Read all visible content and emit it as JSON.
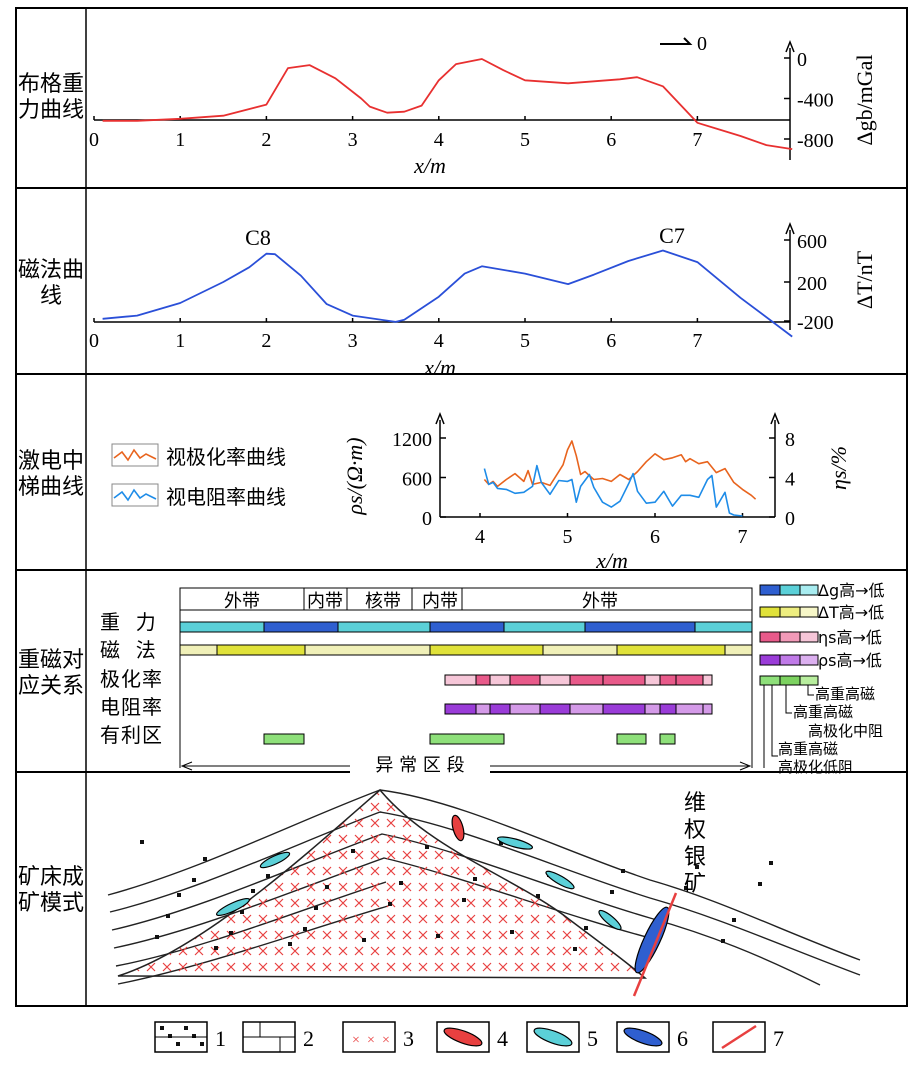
{
  "panels": {
    "gravity": {
      "label": "布格重力曲线",
      "xlabel": "x/m",
      "ylabel": "Δgb/mGal",
      "yticks": [
        "0",
        "-400",
        "-800"
      ],
      "arrow_label": "0"
    },
    "magnetic": {
      "label": "磁法曲线",
      "xlabel": "x/m",
      "ylabel": "ΔT/nT",
      "yticks": [
        "600",
        "200",
        "-200"
      ],
      "peak_labels": [
        "C8",
        "C7"
      ]
    },
    "ip": {
      "label": "激电中梯曲线",
      "legend": [
        "视极化率曲线",
        "视电阻率曲线"
      ],
      "ylabel_left": "ρs/(Ω·m)",
      "ylabel_right": "ηs/%",
      "xlabel": "x/m",
      "left_ticks": [
        "1200",
        "600",
        "0"
      ],
      "right_ticks": [
        "8",
        "4",
        "0"
      ]
    },
    "relation": {
      "label": "重磁对应关系",
      "zones": [
        "外带",
        "内带",
        "核带",
        "内带",
        "外带"
      ],
      "rows": [
        "重  力",
        "磁  法",
        "极化率",
        "电阻率",
        "有利区"
      ],
      "bottom": "异 常 区 段",
      "legend": [
        "Δg高→低",
        "ΔT高→低",
        "ηs高→低",
        "ρs高→低"
      ],
      "notes": [
        "高重高磁",
        "高重高磁",
        "高极化中阻",
        "高重高磁",
        "高极化低阻"
      ]
    },
    "model": {
      "label": "矿床成矿模式",
      "vein_label": "维权银矿"
    }
  },
  "legend_items": [
    "1",
    "2",
    "3",
    "4",
    "5",
    "6",
    "7"
  ],
  "colors": {
    "gravity": "#e83030",
    "magnetic": "#2a4fd8",
    "polar": "#e8641e",
    "resist": "#1e8ce8",
    "cyan": "#5bd0d8",
    "blue": "#2f5fd0",
    "yellow": "#e0e23a",
    "pink": "#e85a8a",
    "purple": "#9a3cd8",
    "green": "#8ee07a",
    "granite": "#e84040"
  },
  "chart_data": [
    {
      "type": "line",
      "title": "",
      "xlabel": "x/m",
      "ylabel": "Δgb/mGal",
      "xlim": [
        0,
        8.1
      ],
      "ylim": [
        -900,
        100
      ],
      "series": [
        {
          "values": [
            [
              0.1,
              -620
            ],
            [
              0.5,
              -620
            ],
            [
              1,
              -600
            ],
            [
              1.5,
              -570
            ],
            [
              2,
              -460
            ],
            [
              2.25,
              -100
            ],
            [
              2.5,
              -70
            ],
            [
              2.8,
              -200
            ],
            [
              3.1,
              -400
            ],
            [
              3.2,
              -480
            ],
            [
              3.4,
              -540
            ],
            [
              3.6,
              -530
            ],
            [
              3.8,
              -470
            ],
            [
              4,
              -220
            ],
            [
              4.2,
              -60
            ],
            [
              4.5,
              -10
            ],
            [
              4.75,
              -120
            ],
            [
              5,
              -220
            ],
            [
              5.5,
              -250
            ],
            [
              6.1,
              -210
            ],
            [
              6.3,
              -190
            ],
            [
              6.6,
              -280
            ],
            [
              7,
              -640
            ],
            [
              7.5,
              -770
            ],
            [
              7.8,
              -860
            ],
            [
              8.1,
              -900
            ]
          ]
        }
      ]
    },
    {
      "type": "line",
      "title": "",
      "xlabel": "x/m",
      "ylabel": "ΔT/nT",
      "xlim": [
        0,
        8.1
      ],
      "ylim": [
        -250,
        750
      ],
      "series": [
        {
          "values": [
            [
              0.1,
              -150
            ],
            [
              0.5,
              -120
            ],
            [
              1,
              0
            ],
            [
              1.5,
              200
            ],
            [
              1.8,
              340
            ],
            [
              2,
              470
            ],
            [
              2.1,
              465
            ],
            [
              2.4,
              260
            ],
            [
              2.7,
              -10
            ],
            [
              3,
              -120
            ],
            [
              3.5,
              -180
            ],
            [
              3.6,
              -160
            ],
            [
              4,
              60
            ],
            [
              4.3,
              280
            ],
            [
              4.5,
              350
            ],
            [
              5,
              280
            ],
            [
              5.5,
              180
            ],
            [
              5.8,
              270
            ],
            [
              6.2,
              400
            ],
            [
              6.6,
              500
            ],
            [
              7,
              390
            ],
            [
              7.5,
              50
            ],
            [
              8.1,
              -320
            ]
          ]
        }
      ]
    },
    {
      "type": "line",
      "title": "",
      "xlabel": "x/m",
      "ylabel": "ρs/(Ω·m)",
      "xlim": [
        3.6,
        7.3
      ],
      "ylim": [
        0,
        1500
      ],
      "series": [
        {
          "name": "视极化率曲线",
          "values": [
            [
              4.05,
              3.8
            ],
            [
              4.1,
              3.3
            ],
            [
              4.15,
              3.6
            ],
            [
              4.2,
              3.1
            ],
            [
              4.3,
              3.8
            ],
            [
              4.4,
              4.4
            ],
            [
              4.5,
              3.6
            ],
            [
              4.55,
              4.7
            ],
            [
              4.6,
              3.3
            ],
            [
              4.7,
              3.5
            ],
            [
              4.8,
              3.2
            ],
            [
              4.9,
              4.6
            ],
            [
              4.95,
              5.3
            ],
            [
              5,
              6.8
            ],
            [
              5.05,
              7.7
            ],
            [
              5.1,
              6.2
            ],
            [
              5.15,
              4.3
            ],
            [
              5.2,
              4.6
            ],
            [
              5.3,
              3.8
            ],
            [
              5.4,
              3.9
            ],
            [
              5.5,
              3.6
            ],
            [
              5.6,
              4.3
            ],
            [
              5.7,
              3.8
            ],
            [
              5.8,
              4.6
            ],
            [
              5.9,
              5.6
            ],
            [
              6,
              6.4
            ],
            [
              6.1,
              5.8
            ],
            [
              6.2,
              6.0
            ],
            [
              6.3,
              6.3
            ],
            [
              6.35,
              5.6
            ],
            [
              6.4,
              5.9
            ],
            [
              6.5,
              5.4
            ],
            [
              6.6,
              5.6
            ],
            [
              6.7,
              4.5
            ],
            [
              6.8,
              4.9
            ],
            [
              6.9,
              3.5
            ],
            [
              7,
              2.8
            ],
            [
              7.1,
              2.2
            ],
            [
              7.15,
              1.8
            ]
          ]
        },
        {
          "name": "视电阻率曲线",
          "values": [
            [
              4.05,
              4.9
            ],
            [
              4.1,
              3.3
            ],
            [
              4.15,
              3.5
            ],
            [
              4.2,
              2.9
            ],
            [
              4.3,
              2.8
            ],
            [
              4.4,
              2.4
            ],
            [
              4.5,
              2.5
            ],
            [
              4.6,
              3.1
            ],
            [
              4.65,
              5.2
            ],
            [
              4.7,
              3.5
            ],
            [
              4.8,
              2.3
            ],
            [
              4.9,
              3.7
            ],
            [
              5,
              3.6
            ],
            [
              5.05,
              3.8
            ],
            [
              5.1,
              1.5
            ],
            [
              5.15,
              3.1
            ],
            [
              5.25,
              4.3
            ],
            [
              5.3,
              3.0
            ],
            [
              5.4,
              1.5
            ],
            [
              5.5,
              1.0
            ],
            [
              5.6,
              1.6
            ],
            [
              5.7,
              3.4
            ],
            [
              5.75,
              4.4
            ],
            [
              5.8,
              2.6
            ],
            [
              5.9,
              1.4
            ],
            [
              6,
              1.5
            ],
            [
              6.1,
              2.6
            ],
            [
              6.2,
              1.1
            ],
            [
              6.3,
              2.2
            ],
            [
              6.4,
              2.2
            ],
            [
              6.5,
              2.0
            ],
            [
              6.6,
              3.8
            ],
            [
              6.65,
              4.2
            ],
            [
              6.7,
              1.0
            ],
            [
              6.8,
              2.5
            ],
            [
              6.85,
              0.4
            ],
            [
              6.9,
              0.2
            ],
            [
              7,
              0.1
            ]
          ]
        }
      ]
    }
  ]
}
